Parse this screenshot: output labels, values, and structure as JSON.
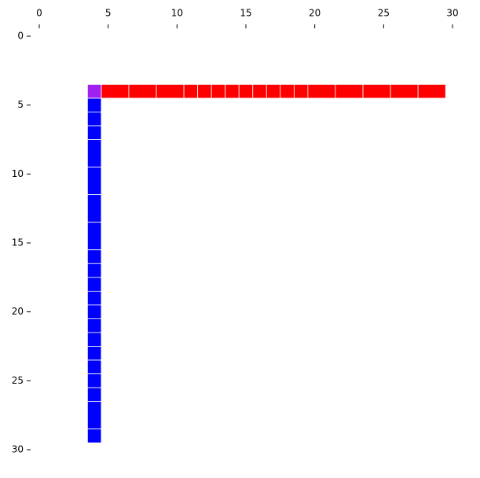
{
  "chart_data": {
    "type": "rects",
    "xlim": [
      0,
      30
    ],
    "ylim": [
      0,
      30
    ],
    "y_inverted": true,
    "x_axis_position": "top",
    "xticks": [
      0,
      5,
      10,
      15,
      20,
      25,
      30
    ],
    "yticks": [
      0,
      5,
      10,
      15,
      20,
      25,
      30
    ],
    "series": [
      {
        "color": "#ff0000",
        "orientation": "horizontal",
        "band": [
          3.5,
          4.5
        ],
        "edges": [
          4.5,
          6.5,
          8.5,
          10.5,
          11.5,
          12.5,
          13.5,
          14.5,
          15.5,
          16.5,
          17.5,
          18.5,
          19.5,
          21.5,
          23.5,
          25.5,
          27.5,
          29.5
        ]
      },
      {
        "color": "#0000ff",
        "orientation": "vertical",
        "band": [
          3.5,
          4.5
        ],
        "edges": [
          4.5,
          5.5,
          6.5,
          7.5,
          9.5,
          11.5,
          13.5,
          15.5,
          16.5,
          17.5,
          18.5,
          19.5,
          20.5,
          21.5,
          22.5,
          23.5,
          24.5,
          25.5,
          26.5,
          28.5,
          29.5
        ]
      }
    ],
    "cells": [
      {
        "color": "#a020f0",
        "x": [
          3.5,
          4.5
        ],
        "y": [
          3.5,
          4.5
        ]
      }
    ]
  }
}
